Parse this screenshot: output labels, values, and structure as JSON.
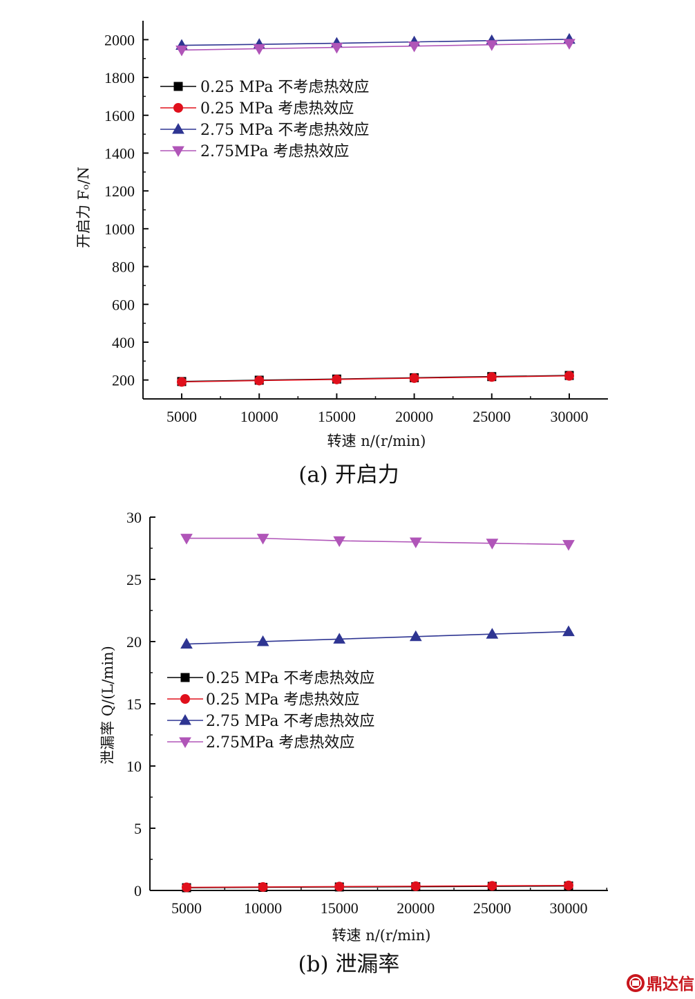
{
  "chart_data": [
    {
      "type": "line",
      "panel": "a",
      "caption": "(a) 开启力",
      "xlabel": "转速 n/(r/min)",
      "ylabel": "开启力 Fₒ/N",
      "xlim": [
        2500,
        32500
      ],
      "ylim": [
        100,
        2100
      ],
      "x_ticks": [
        5000,
        10000,
        15000,
        20000,
        25000,
        30000
      ],
      "y_ticks": [
        200,
        400,
        600,
        800,
        1000,
        1200,
        1400,
        1600,
        1800,
        2000
      ],
      "legend": "upper-left",
      "x": [
        5000,
        10000,
        15000,
        20000,
        25000,
        30000
      ],
      "series": [
        {
          "name": "0.25 MPa 不考虑热效应",
          "marker": "square",
          "color": "#000000",
          "values": [
            192,
            199,
            205,
            212,
            218,
            224
          ]
        },
        {
          "name": "0.25 MPa 考虑热效应",
          "marker": "circle",
          "color": "#e0101c",
          "values": [
            190,
            197,
            203,
            210,
            216,
            222
          ]
        },
        {
          "name": "2.75 MPa 不考虑热效应",
          "marker": "triangle-up",
          "color": "#2e3592",
          "values": [
            1970,
            1975,
            1981,
            1988,
            1995,
            2002
          ]
        },
        {
          "name": "2.75MPa 考虑热效应",
          "marker": "triangle-down",
          "color": "#b055b8",
          "values": [
            1945,
            1952,
            1959,
            1966,
            1973,
            1980
          ]
        }
      ]
    },
    {
      "type": "line",
      "panel": "b",
      "caption": "(b) 泄漏率",
      "xlabel": "转速 n/(r/min)",
      "ylabel": "泄漏率 Q/(L/min)",
      "xlim": [
        2500,
        32500
      ],
      "ylim": [
        0,
        30
      ],
      "x_ticks": [
        5000,
        10000,
        15000,
        20000,
        25000,
        30000
      ],
      "y_ticks": [
        0,
        5,
        10,
        15,
        20,
        25,
        30
      ],
      "legend": "center-left",
      "x": [
        5000,
        10000,
        15000,
        20000,
        25000,
        30000
      ],
      "series": [
        {
          "name": "0.25 MPa 不考虑热效应",
          "marker": "square",
          "color": "#000000",
          "values": [
            0.22,
            0.25,
            0.28,
            0.3,
            0.33,
            0.36
          ]
        },
        {
          "name": "0.25 MPa 考虑热效应",
          "marker": "circle",
          "color": "#e0101c",
          "values": [
            0.25,
            0.28,
            0.31,
            0.34,
            0.37,
            0.4
          ]
        },
        {
          "name": "2.75 MPa 不考虑热效应",
          "marker": "triangle-up",
          "color": "#2e3592",
          "values": [
            19.8,
            20.0,
            20.2,
            20.4,
            20.6,
            20.8
          ]
        },
        {
          "name": "2.75MPa 考虑热效应",
          "marker": "triangle-down",
          "color": "#b055b8",
          "values": [
            28.3,
            28.3,
            28.1,
            28.0,
            27.9,
            27.8
          ]
        }
      ]
    }
  ],
  "watermark": {
    "text": "鼎达信",
    "color": "#c8161d",
    "icon": "ddx-logo-icon"
  }
}
